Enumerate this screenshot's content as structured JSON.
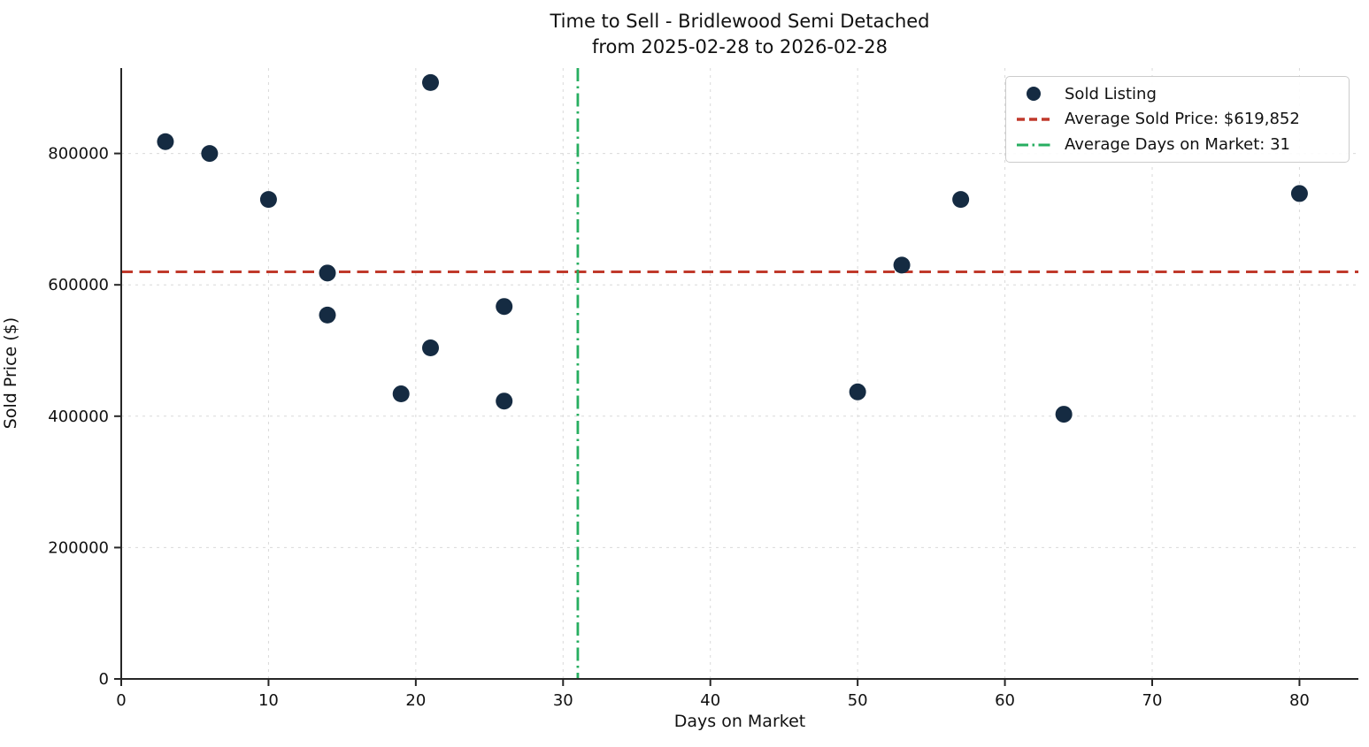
{
  "figure": {
    "title_line1": "Time to Sell - Bridlewood Semi Detached",
    "title_line2": "from 2025-02-28 to 2026-02-28",
    "xlabel": "Days on Market",
    "ylabel": "Sold Price ($)"
  },
  "chart_data": {
    "type": "scatter",
    "title": "Time to Sell - Bridlewood Semi Detached from 2025-02-28 to 2026-02-28",
    "xlabel": "Days on Market",
    "ylabel": "Sold Price ($)",
    "xlim": [
      0,
      84
    ],
    "ylim": [
      0,
      930000
    ],
    "x_ticks": [
      0,
      10,
      20,
      30,
      40,
      50,
      60,
      70,
      80
    ],
    "y_ticks": [
      0,
      200000,
      400000,
      600000,
      800000
    ],
    "grid": true,
    "legend_position": "upper right",
    "series": [
      {
        "name": "Sold Listing",
        "marker": "circle",
        "color": "#152b42",
        "points": [
          {
            "days_on_market": 3,
            "sold_price": 818000
          },
          {
            "days_on_market": 6,
            "sold_price": 800000
          },
          {
            "days_on_market": 10,
            "sold_price": 730000
          },
          {
            "days_on_market": 14,
            "sold_price": 618000
          },
          {
            "days_on_market": 14,
            "sold_price": 554000
          },
          {
            "days_on_market": 19,
            "sold_price": 434000
          },
          {
            "days_on_market": 21,
            "sold_price": 908000
          },
          {
            "days_on_market": 21,
            "sold_price": 504000
          },
          {
            "days_on_market": 26,
            "sold_price": 567000
          },
          {
            "days_on_market": 26,
            "sold_price": 423000
          },
          {
            "days_on_market": 50,
            "sold_price": 437000
          },
          {
            "days_on_market": 53,
            "sold_price": 630000
          },
          {
            "days_on_market": 57,
            "sold_price": 730000
          },
          {
            "days_on_market": 64,
            "sold_price": 403000
          },
          {
            "days_on_market": 80,
            "sold_price": 739000
          }
        ]
      }
    ],
    "reference_lines": [
      {
        "name": "Average Sold Price: $619,852",
        "orientation": "horizontal",
        "value": 619852,
        "style": "dashed",
        "color": "#c0392b"
      },
      {
        "name": "Average Days on Market: 31",
        "orientation": "vertical",
        "value": 31,
        "style": "dashdot",
        "color": "#27ae60"
      }
    ],
    "legend": {
      "sold_listing": "Sold Listing",
      "avg_price": "Average Sold Price: $619,852",
      "avg_days": "Average Days on Market: 31"
    }
  },
  "style": {
    "point_color": "#152b42",
    "avg_price_color": "#c0392b",
    "avg_days_color": "#27ae60",
    "grid_color": "#d9d9d9",
    "spine_color": "#262626"
  }
}
